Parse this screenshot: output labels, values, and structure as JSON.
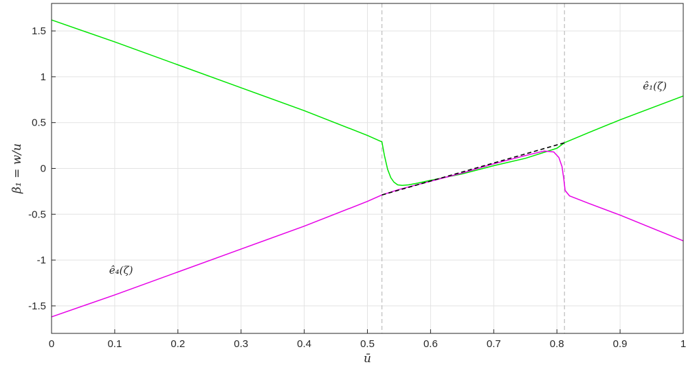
{
  "chart_data": {
    "type": "line",
    "xlabel": "ū",
    "ylabel": "β₁ = w/u",
    "xlim": [
      0,
      1
    ],
    "ylim": [
      -1.8,
      1.8
    ],
    "grid": true,
    "xticks": [
      0,
      0.1,
      0.2,
      0.3,
      0.4,
      0.5,
      0.6,
      0.7,
      0.8,
      0.9,
      1
    ],
    "xtick_labels": [
      "0",
      "0.1",
      "0.2",
      "0.3",
      "0.4",
      "0.5",
      "0.6",
      "0.7",
      "0.8",
      "0.9",
      "1"
    ],
    "yticks": [
      1.5,
      1,
      0.5,
      0,
      -0.5,
      -1,
      -1.5
    ],
    "ytick_labels": [
      "1.5",
      "1",
      "0.5",
      "0",
      "-0.5",
      "-1",
      "-1.5"
    ],
    "vlines": [
      0.523,
      0.812
    ],
    "series": [
      {
        "color": "#00e600",
        "x": [
          0,
          0.1,
          0.2,
          0.3,
          0.4,
          0.5,
          0.523,
          0.527,
          0.532,
          0.537,
          0.542,
          0.548,
          0.555,
          0.565,
          0.58,
          0.6,
          0.65,
          0.7,
          0.75,
          0.8,
          0.812,
          0.85,
          0.9,
          0.95,
          1.0
        ],
        "y": [
          1.62,
          1.38,
          1.13,
          0.88,
          0.63,
          0.36,
          0.29,
          0.14,
          -0.01,
          -0.1,
          -0.15,
          -0.18,
          -0.185,
          -0.18,
          -0.16,
          -0.13,
          -0.06,
          0.03,
          0.11,
          0.22,
          0.28,
          0.39,
          0.53,
          0.66,
          0.79
        ]
      },
      {
        "color": "#e600e6",
        "x": [
          0,
          0.1,
          0.2,
          0.3,
          0.4,
          0.5,
          0.523,
          0.55,
          0.6,
          0.65,
          0.7,
          0.75,
          0.78,
          0.795,
          0.803,
          0.808,
          0.811,
          0.813,
          0.82,
          0.85,
          0.9,
          0.95,
          1.0
        ],
        "y": [
          -1.62,
          -1.38,
          -1.13,
          -0.88,
          -0.63,
          -0.36,
          -0.29,
          -0.23,
          -0.14,
          -0.05,
          0.05,
          0.14,
          0.19,
          0.18,
          0.12,
          0.02,
          -0.12,
          -0.24,
          -0.3,
          -0.38,
          -0.51,
          -0.65,
          -0.79
        ]
      },
      {
        "color": "#000000",
        "dashed": true,
        "x": [
          0.523,
          0.812
        ],
        "y": [
          -0.29,
          0.28
        ]
      }
    ],
    "annotations": [
      {
        "text": "ê₁(ζ)",
        "x": 0.955,
        "y": 0.86
      },
      {
        "text": "ê₄(ζ)",
        "x": 0.11,
        "y": -1.15
      }
    ]
  }
}
